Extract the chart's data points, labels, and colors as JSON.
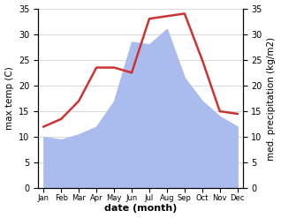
{
  "months": [
    "Jan",
    "Feb",
    "Mar",
    "Apr",
    "May",
    "Jun",
    "Jul",
    "Aug",
    "Sep",
    "Oct",
    "Nov",
    "Dec"
  ],
  "temp": [
    12,
    13.5,
    17,
    23.5,
    23.5,
    22.5,
    33,
    33.5,
    34,
    25,
    15,
    14.5
  ],
  "precip": [
    10,
    9.5,
    10.5,
    12,
    17,
    28.5,
    28,
    31,
    21.5,
    17,
    14,
    12
  ],
  "temp_color": "#cc3333",
  "precip_color": "#aabbee",
  "ylim": [
    0,
    35
  ],
  "yticks": [
    0,
    5,
    10,
    15,
    20,
    25,
    30,
    35
  ],
  "xlabel": "date (month)",
  "ylabel_left": "max temp (C)",
  "ylabel_right": "med. precipitation (kg/m2)",
  "bg_color": "#ffffff",
  "grid_color": "#cccccc",
  "line_width": 1.8
}
